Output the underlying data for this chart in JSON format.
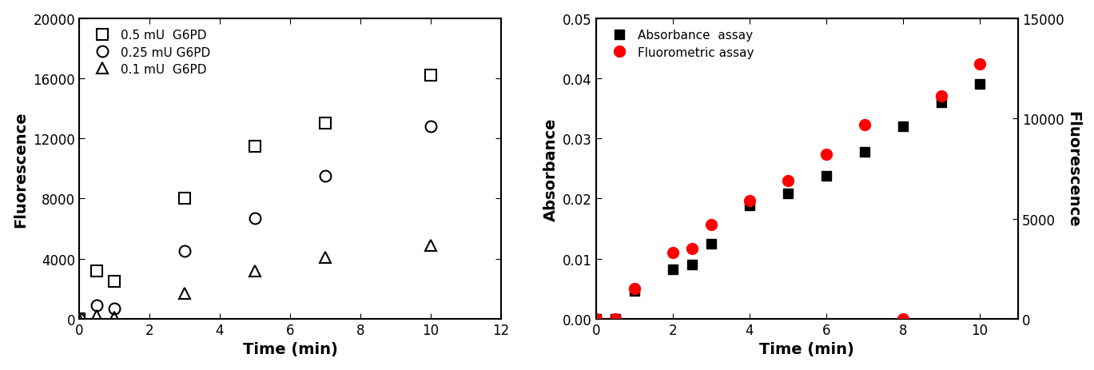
{
  "left_panel": {
    "xlabel": "Time (min)",
    "ylabel": "Fluorescence",
    "xlim": [
      0,
      12
    ],
    "ylim": [
      0,
      20000
    ],
    "xticks": [
      0,
      2,
      4,
      6,
      8,
      10,
      12
    ],
    "yticks": [
      0,
      4000,
      8000,
      12000,
      16000,
      20000
    ],
    "series": [
      {
        "label": "0.5 mU  G6PD",
        "marker": "s",
        "fillstyle": "none",
        "color": "black",
        "x": [
          0,
          0.5,
          1,
          3,
          5,
          7,
          10
        ],
        "y": [
          0,
          3200,
          2500,
          8000,
          11500,
          13000,
          16200
        ]
      },
      {
        "label": "0.25 mU G6PD",
        "marker": "o",
        "fillstyle": "none",
        "color": "black",
        "x": [
          0,
          0.5,
          1,
          3,
          5,
          7,
          10
        ],
        "y": [
          0,
          900,
          700,
          4500,
          6700,
          9500,
          12800
        ]
      },
      {
        "label": "0.1 mU  G6PD",
        "marker": "^",
        "fillstyle": "none",
        "color": "black",
        "x": [
          0,
          0.5,
          1,
          3,
          5,
          7,
          10
        ],
        "y": [
          0,
          200,
          100,
          1700,
          3200,
          4100,
          4900
        ]
      }
    ]
  },
  "right_panel": {
    "xlabel": "Time (min)",
    "ylabel_left": "Absorbance",
    "ylabel_right": "Fluorescence",
    "xlim": [
      0,
      11
    ],
    "ylim_left": [
      0,
      0.05
    ],
    "ylim_right": [
      0,
      15000
    ],
    "xticks": [
      0,
      2,
      4,
      6,
      8,
      10
    ],
    "yticks_left": [
      0.0,
      0.01,
      0.02,
      0.03,
      0.04,
      0.05
    ],
    "yticks_right": [
      0,
      5000,
      10000,
      15000
    ],
    "absorbance": {
      "label": "Absorbance  assay",
      "marker": "s",
      "color": "black",
      "markersize": 9,
      "x": [
        0,
        0.5,
        1,
        2,
        2.5,
        3,
        4,
        5,
        6,
        7,
        8,
        9,
        10
      ],
      "y": [
        0.0,
        0.0,
        0.0047,
        0.0082,
        0.009,
        0.0125,
        0.0188,
        0.0208,
        0.0238,
        0.0278,
        0.032,
        0.036,
        0.039
      ]
    },
    "fluorometric": {
      "label": "Fluorometric assay",
      "marker": "o",
      "color": "#ff0000",
      "markersize": 10,
      "x": [
        0,
        0.5,
        1,
        2,
        2.5,
        3,
        4,
        5,
        6,
        7,
        8,
        9,
        10
      ],
      "y": [
        0,
        0,
        1500,
        3300,
        3500,
        4700,
        5900,
        6900,
        8200,
        9700,
        0,
        11100,
        12700
      ]
    }
  }
}
